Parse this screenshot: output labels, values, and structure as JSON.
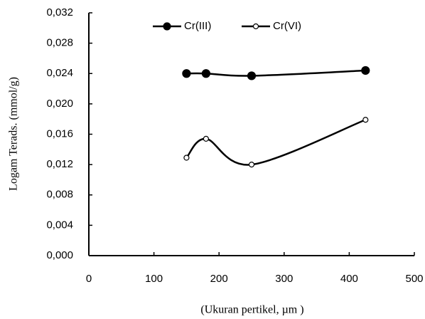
{
  "chart_data": {
    "type": "line",
    "y_label": "Logam Terads. (mmol/g)",
    "x_label": "(Ukuran pertikel, µm )",
    "x": [
      150,
      180,
      250,
      425
    ],
    "series": [
      {
        "name": "Cr(III)",
        "color": "#000000",
        "marker": "filled",
        "values": [
          0.024,
          0.024,
          0.0237,
          0.0244
        ]
      },
      {
        "name": "Cr(VI)",
        "color": "#000000",
        "marker": "open",
        "values": [
          0.0129,
          0.0154,
          0.012,
          0.0179
        ]
      }
    ],
    "xlim": [
      0,
      500
    ],
    "xticks": [
      0,
      100,
      200,
      300,
      400,
      500
    ],
    "ylim": [
      0,
      0.032
    ],
    "yticks": [
      {
        "value": 0,
        "label": "0,000"
      },
      {
        "value": 0.004,
        "label": "0,004"
      },
      {
        "value": 0.008,
        "label": "0,008"
      },
      {
        "value": 0.012,
        "label": "0,012"
      },
      {
        "value": 0.016,
        "label": "0,016"
      },
      {
        "value": 0.02,
        "label": "0,020"
      },
      {
        "value": 0.024,
        "label": "0,024"
      },
      {
        "value": 0.028,
        "label": "0,028"
      },
      {
        "value": 0.032,
        "label": "0,032"
      }
    ],
    "smooth": true,
    "grid": false,
    "legend": "top"
  }
}
